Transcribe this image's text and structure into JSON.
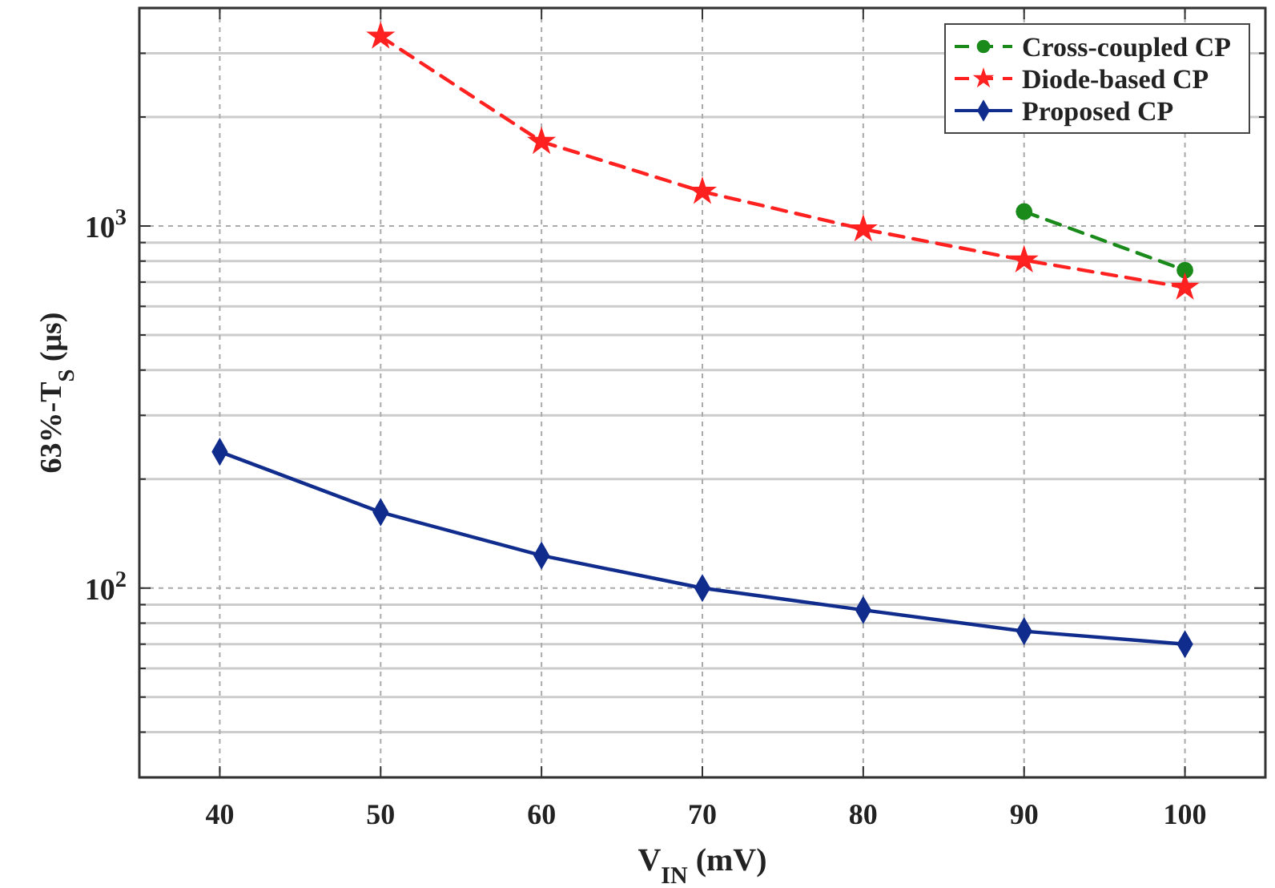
{
  "chart_data": {
    "type": "line",
    "xlabel": "V$_{IN}$ (mV)",
    "ylabel": "63%-T$_{S}$ (μs)",
    "x": [
      40,
      50,
      60,
      70,
      80,
      90,
      100
    ],
    "xlim": [
      35,
      105
    ],
    "xticks": [
      40,
      50,
      60,
      70,
      80,
      90,
      100
    ],
    "ylim": [
      30,
      4000
    ],
    "yticks": [
      {
        "value": 100,
        "label": "10$^{2}$"
      },
      {
        "value": 1000,
        "label": "10$^{3}$"
      }
    ],
    "log": "y",
    "grid": true,
    "legend": "top right",
    "series": [
      {
        "name": "Cross-coupled CP",
        "color": "#1a8a1a",
        "marker": "circle",
        "line_style": "dashed",
        "values": [
          null,
          null,
          null,
          null,
          null,
          1096,
          755
        ]
      },
      {
        "name": "Diode-based CP",
        "color": "#ff2020",
        "marker": "star",
        "line_style": "dashed",
        "values": [
          null,
          3340,
          1710,
          1245,
          980,
          805,
          677
        ]
      },
      {
        "name": "Proposed CP",
        "color": "#102c8c",
        "marker": "diamond",
        "line_style": "solid",
        "values": [
          238,
          162,
          123,
          100,
          87,
          76,
          70
        ]
      }
    ]
  }
}
